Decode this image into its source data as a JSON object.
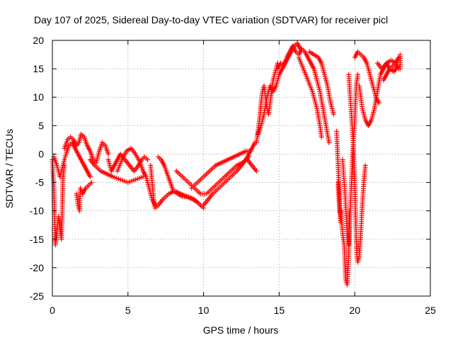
{
  "chart_data": {
    "type": "scatter",
    "title": "Day 107 of 2025, Sidereal Day-to-day VTEC variation (SDTVAR) for receiver picl",
    "xlabel": "GPS time / hours",
    "ylabel": "SDTVAR / TECUs",
    "xlim": [
      0,
      25
    ],
    "ylim": [
      -25,
      20
    ],
    "xticks": [
      "0",
      "5",
      "10",
      "15",
      "20",
      "25"
    ],
    "yticks": [
      "20",
      "15",
      "10",
      "5",
      "0",
      "-5",
      "-10",
      "-15",
      "-20",
      "-25"
    ],
    "grid": true,
    "marker": "+",
    "colors": {
      "series": "#ff0000",
      "grid": "#a0a0a0",
      "frame": "#000000"
    },
    "series": [
      {
        "segments": [
          [
            [
              0.0,
              -1
            ],
            [
              0.1,
              -6
            ],
            [
              0.15,
              -12
            ],
            [
              0.2,
              -16
            ],
            [
              0.3,
              -14
            ],
            [
              0.4,
              -11
            ],
            [
              0.5,
              -13
            ],
            [
              0.6,
              -15
            ],
            [
              0.65,
              -10
            ],
            [
              0.7,
              -4
            ],
            [
              0.8,
              -2
            ]
          ],
          [
            [
              0.1,
              -0.5
            ],
            [
              0.3,
              -2
            ],
            [
              0.5,
              -4
            ],
            [
              0.7,
              -2
            ],
            [
              0.9,
              0
            ],
            [
              1.1,
              1.5
            ],
            [
              1.3,
              2
            ],
            [
              1.5,
              1
            ],
            [
              1.7,
              0
            ],
            [
              1.9,
              -1
            ],
            [
              2.1,
              -2
            ],
            [
              2.3,
              -3
            ],
            [
              2.5,
              -4
            ]
          ],
          [
            [
              0.8,
              1
            ],
            [
              1.0,
              2.5
            ],
            [
              1.2,
              3
            ],
            [
              1.4,
              2.5
            ],
            [
              1.6,
              1.5
            ],
            [
              1.75,
              2
            ],
            [
              1.9,
              3.5
            ],
            [
              2.1,
              3
            ],
            [
              2.3,
              1.5
            ],
            [
              2.5,
              0.5
            ],
            [
              2.7,
              -1
            ],
            [
              2.9,
              -1.5
            ],
            [
              3.1,
              0.5
            ],
            [
              3.3,
              2
            ],
            [
              3.5,
              1.5
            ],
            [
              3.7,
              0
            ]
          ],
          [
            [
              1.6,
              -7
            ],
            [
              1.7,
              -9
            ],
            [
              1.8,
              -10
            ],
            [
              1.85,
              -6
            ],
            [
              2.0,
              -7
            ],
            [
              2.2,
              -6
            ],
            [
              2.4,
              -5.5
            ],
            [
              2.6,
              -5
            ]
          ],
          [
            [
              2.5,
              -1
            ],
            [
              2.8,
              -2
            ],
            [
              3.2,
              -3
            ],
            [
              3.6,
              -3.5
            ],
            [
              4.0,
              -4
            ],
            [
              4.5,
              -4.5
            ],
            [
              5.0,
              -5
            ],
            [
              5.5,
              -4.5
            ],
            [
              6.0,
              -4
            ]
          ],
          [
            [
              3.7,
              -1
            ],
            [
              3.9,
              -3
            ],
            [
              4.1,
              -2
            ],
            [
              4.3,
              -1
            ],
            [
              4.5,
              0
            ],
            [
              4.8,
              -1
            ],
            [
              5.1,
              -2
            ],
            [
              5.4,
              -3
            ],
            [
              5.7,
              -2
            ],
            [
              5.9,
              -1
            ],
            [
              6.1,
              -0.5
            ],
            [
              6.3,
              -1
            ]
          ],
          [
            [
              4.3,
              -3
            ],
            [
              4.6,
              -1
            ],
            [
              4.9,
              0.5
            ],
            [
              5.2,
              1
            ],
            [
              5.5,
              0
            ],
            [
              5.8,
              -1.5
            ],
            [
              6.0,
              -3
            ],
            [
              6.2,
              -4
            ],
            [
              6.4,
              -6
            ],
            [
              6.6,
              -8
            ],
            [
              6.8,
              -9
            ]
          ],
          [
            [
              6.5,
              -2
            ],
            [
              6.6,
              -5
            ],
            [
              6.7,
              -8
            ],
            [
              6.8,
              -9.5
            ],
            [
              7.0,
              -9
            ],
            [
              7.3,
              -8
            ],
            [
              7.7,
              -7
            ],
            [
              8.1,
              -6.5
            ],
            [
              8.5,
              -7
            ],
            [
              8.9,
              -7.5
            ],
            [
              9.3,
              -8
            ],
            [
              9.6,
              -8.5
            ],
            [
              9.8,
              -9
            ]
          ],
          [
            [
              7.0,
              -0.5
            ],
            [
              7.2,
              -1
            ],
            [
              7.4,
              -2
            ],
            [
              7.6,
              -3.5
            ],
            [
              7.8,
              -5
            ],
            [
              8.0,
              -6.5
            ],
            [
              8.3,
              -7
            ],
            [
              8.6,
              -7.5
            ],
            [
              9.0,
              -7.5
            ],
            [
              9.4,
              -8
            ],
            [
              9.8,
              -9
            ],
            [
              10.0,
              -9.5
            ]
          ],
          [
            [
              8.2,
              -3
            ],
            [
              8.6,
              -4
            ],
            [
              9.0,
              -5
            ],
            [
              9.4,
              -6
            ],
            [
              9.8,
              -7
            ],
            [
              10.2,
              -7
            ],
            [
              10.6,
              -6
            ],
            [
              11.0,
              -5
            ],
            [
              11.4,
              -4
            ],
            [
              11.8,
              -3
            ],
            [
              12.2,
              -2
            ],
            [
              12.6,
              -1.5
            ],
            [
              13.0,
              -0.5
            ]
          ],
          [
            [
              9.2,
              -6
            ],
            [
              9.6,
              -5
            ],
            [
              10.0,
              -4
            ],
            [
              10.4,
              -3
            ],
            [
              10.8,
              -2
            ],
            [
              11.2,
              -1.5
            ],
            [
              11.6,
              -1
            ],
            [
              12.0,
              -0.5
            ],
            [
              12.4,
              0
            ],
            [
              12.8,
              0.5
            ],
            [
              13.1,
              0.5
            ]
          ],
          [
            [
              10.0,
              -9
            ],
            [
              10.3,
              -8
            ],
            [
              10.6,
              -7
            ],
            [
              11.0,
              -6
            ],
            [
              11.4,
              -5
            ],
            [
              11.8,
              -4
            ],
            [
              12.2,
              -3
            ],
            [
              12.5,
              -2
            ],
            [
              12.8,
              -1
            ],
            [
              13.0,
              0
            ],
            [
              13.2,
              1
            ],
            [
              13.4,
              2
            ]
          ],
          [
            [
              12.9,
              -1
            ],
            [
              13.2,
              -2
            ],
            [
              13.5,
              -3
            ]
          ],
          [
            [
              13.5,
              2
            ],
            [
              13.6,
              4
            ],
            [
              13.7,
              6
            ],
            [
              13.8,
              9
            ],
            [
              13.9,
              11
            ],
            [
              14.0,
              12
            ],
            [
              14.1,
              10
            ],
            [
              14.2,
              8
            ],
            [
              14.3,
              7
            ],
            [
              14.4,
              9
            ],
            [
              14.5,
              11
            ],
            [
              14.6,
              13
            ],
            [
              14.7,
              14
            ],
            [
              14.8,
              15
            ],
            [
              14.9,
              16
            ]
          ],
          [
            [
              13.6,
              3.5
            ],
            [
              13.8,
              5
            ],
            [
              14.0,
              7
            ],
            [
              14.2,
              10
            ],
            [
              14.4,
              12
            ],
            [
              14.6,
              11
            ],
            [
              14.8,
              12
            ],
            [
              15.0,
              14
            ],
            [
              15.2,
              15
            ],
            [
              15.4,
              16
            ],
            [
              15.6,
              17
            ],
            [
              15.8,
              18
            ],
            [
              16.0,
              19
            ],
            [
              16.2,
              19.5
            ],
            [
              16.4,
              18.5
            ]
          ],
          [
            [
              14.9,
              15
            ],
            [
              15.1,
              16
            ],
            [
              15.3,
              15.5
            ],
            [
              15.5,
              17
            ],
            [
              15.7,
              18
            ],
            [
              15.9,
              19
            ],
            [
              16.1,
              18
            ],
            [
              16.3,
              17.5
            ],
            [
              16.5,
              18.5
            ],
            [
              16.7,
              18
            ],
            [
              16.9,
              17
            ],
            [
              17.1,
              16
            ],
            [
              17.3,
              15
            ],
            [
              17.5,
              13
            ],
            [
              17.7,
              11
            ],
            [
              17.9,
              8
            ],
            [
              18.1,
              5
            ],
            [
              18.3,
              2
            ]
          ],
          [
            [
              16.3,
              17
            ],
            [
              16.6,
              15
            ],
            [
              16.9,
              13
            ],
            [
              17.2,
              11
            ],
            [
              17.5,
              8
            ],
            [
              17.7,
              5
            ],
            [
              17.8,
              3
            ]
          ],
          [
            [
              17.0,
              18
            ],
            [
              17.3,
              17.5
            ],
            [
              17.6,
              17
            ],
            [
              17.8,
              16
            ],
            [
              18.0,
              14
            ],
            [
              18.2,
              12
            ],
            [
              18.4,
              9
            ],
            [
              18.6,
              7
            ]
          ],
          [
            [
              18.8,
              4
            ],
            [
              18.9,
              -2
            ],
            [
              19.0,
              -8
            ],
            [
              19.05,
              -12
            ],
            [
              19.1,
              -10
            ]
          ],
          [
            [
              18.9,
              -5
            ],
            [
              19.0,
              -10
            ],
            [
              19.1,
              -11
            ],
            [
              19.2,
              -14
            ],
            [
              19.3,
              -16
            ],
            [
              19.4,
              -22
            ],
            [
              19.5,
              -23
            ],
            [
              19.6,
              -18
            ],
            [
              19.7,
              -10
            ],
            [
              19.8,
              -4
            ],
            [
              19.9,
              2
            ],
            [
              20.0,
              6
            ],
            [
              20.1,
              12
            ],
            [
              20.2,
              14
            ]
          ],
          [
            [
              19.2,
              -1
            ],
            [
              19.3,
              -5
            ],
            [
              19.4,
              -9
            ],
            [
              19.5,
              -14
            ],
            [
              19.6,
              -16
            ],
            [
              19.65,
              -10
            ]
          ],
          [
            [
              19.6,
              14
            ],
            [
              19.7,
              10
            ],
            [
              19.8,
              6
            ],
            [
              19.9,
              2
            ],
            [
              20.0,
              -5
            ],
            [
              20.05,
              -10
            ],
            [
              20.1,
              -15
            ],
            [
              20.15,
              -18
            ],
            [
              20.2,
              -19
            ],
            [
              20.3,
              -18
            ],
            [
              20.4,
              -14
            ],
            [
              20.5,
              -9
            ],
            [
              20.6,
              -5
            ],
            [
              20.7,
              -2
            ]
          ],
          [
            [
              20.0,
              17
            ],
            [
              20.2,
              18
            ],
            [
              20.4,
              17.5
            ],
            [
              20.6,
              17
            ],
            [
              20.8,
              16
            ],
            [
              21.0,
              14
            ],
            [
              21.2,
              12
            ],
            [
              21.4,
              10
            ],
            [
              21.6,
              9
            ]
          ],
          [
            [
              20.3,
              12
            ],
            [
              20.5,
              8
            ],
            [
              20.7,
              6
            ],
            [
              20.9,
              5
            ],
            [
              21.1,
              6
            ],
            [
              21.3,
              8
            ],
            [
              21.5,
              11
            ],
            [
              21.7,
              14
            ],
            [
              21.9,
              15
            ],
            [
              22.1,
              16
            ],
            [
              22.3,
              15
            ],
            [
              22.5,
              15.5
            ],
            [
              22.7,
              16
            ],
            [
              22.9,
              17
            ]
          ],
          [
            [
              21.5,
              16
            ],
            [
              21.8,
              15
            ],
            [
              22.1,
              16
            ],
            [
              22.4,
              16.5
            ],
            [
              22.7,
              16
            ],
            [
              22.9,
              15
            ]
          ],
          [
            [
              21.9,
              13
            ],
            [
              22.1,
              14
            ],
            [
              22.3,
              15
            ],
            [
              22.6,
              14.5
            ],
            [
              22.8,
              15.5
            ]
          ],
          [
            [
              23.0,
              15
            ],
            [
              23.0,
              17.5
            ]
          ]
        ]
      }
    ]
  }
}
